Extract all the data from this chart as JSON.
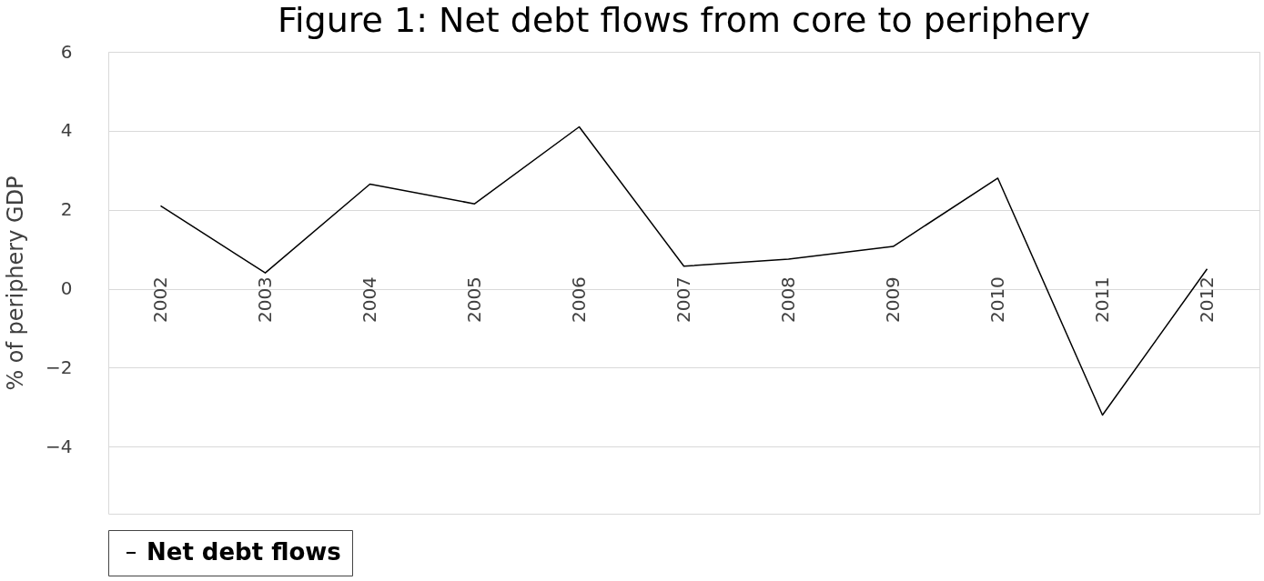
{
  "chart_data": {
    "type": "line",
    "title": "Figure 1: Net debt flows from core to periphery",
    "ylabel": "% of periphery GDP",
    "categories": [
      "2002",
      "2003",
      "2004",
      "2005",
      "2006",
      "2007",
      "2008",
      "2009",
      "2010",
      "2011",
      "2012"
    ],
    "series": [
      {
        "name": "Net debt flows",
        "color": "#000000",
        "values": [
          2.1,
          0.4,
          2.65,
          2.15,
          4.1,
          0.57,
          0.75,
          1.07,
          2.8,
          -3.2,
          0.5
        ]
      }
    ],
    "ylim": [
      -5.7,
      6
    ],
    "yticks": [
      -4,
      -2,
      0,
      2,
      4,
      6
    ],
    "grid": "y",
    "legend": "bottom",
    "marker": "none",
    "line_style": "solid"
  }
}
